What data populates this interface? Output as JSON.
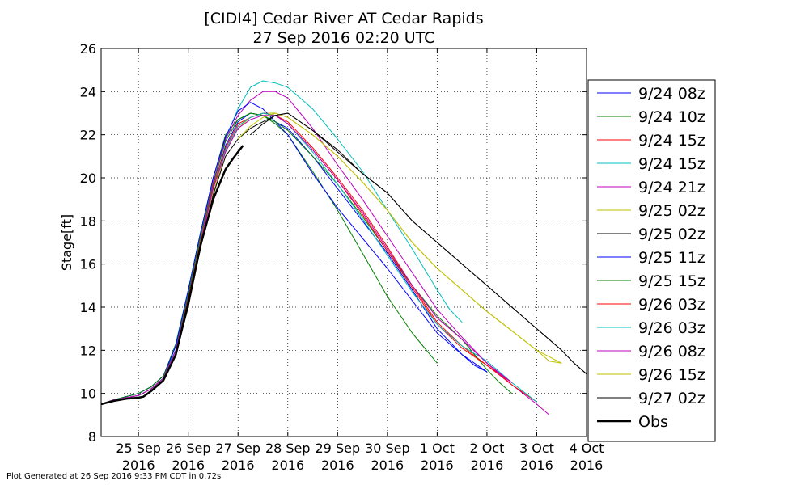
{
  "chart_data": {
    "type": "line",
    "title": "[CIDI4] Cedar River  AT Cedar Rapids",
    "subtitle": "27 Sep 2016 02:20 UTC",
    "ylabel": "Stage[ft]",
    "xlabel": "",
    "ylim": [
      8,
      26
    ],
    "xlim": [
      24.25,
      34.0
    ],
    "yticks": [
      8,
      10,
      12,
      14,
      16,
      18,
      20,
      22,
      24,
      26
    ],
    "xticks": [
      {
        "x": 25,
        "label": [
          "25 Sep",
          "2016"
        ]
      },
      {
        "x": 26,
        "label": [
          "26 Sep",
          "2016"
        ]
      },
      {
        "x": 27,
        "label": [
          "27 Sep",
          "2016"
        ]
      },
      {
        "x": 28,
        "label": [
          "28 Sep",
          "2016"
        ]
      },
      {
        "x": 29,
        "label": [
          "29 Sep",
          "2016"
        ]
      },
      {
        "x": 30,
        "label": [
          "30 Sep",
          "2016"
        ]
      },
      {
        "x": 31,
        "label": [
          "1 Oct",
          "2016"
        ]
      },
      {
        "x": 32,
        "label": [
          "2 Oct",
          "2016"
        ]
      },
      {
        "x": 33,
        "label": [
          "3 Oct",
          "2016"
        ]
      },
      {
        "x": 34,
        "label": [
          "4 Oct",
          "2016"
        ]
      }
    ],
    "x_unit": "day of Sep 2016 (UTC), 32 = 2 Oct",
    "grid": true,
    "legend_position": "right",
    "series": [
      {
        "name": "9/24 08z",
        "color": "#0000ff",
        "width": 1,
        "x": [
          24.25,
          24.5,
          25.0,
          25.25,
          25.5,
          25.75,
          26.0,
          26.25,
          26.5,
          26.75,
          27.0,
          27.25,
          27.5,
          27.75,
          28.0,
          28.5,
          29.0,
          29.5,
          30.0,
          30.5,
          31.0,
          31.5,
          31.75,
          32.0
        ],
        "y": [
          9.5,
          9.7,
          10.0,
          10.3,
          10.8,
          12.0,
          14.5,
          17.0,
          19.5,
          21.5,
          22.6,
          23.0,
          22.9,
          22.6,
          22.3,
          21.0,
          19.5,
          18.0,
          16.5,
          14.8,
          13.0,
          11.8,
          11.3,
          11.0
        ]
      },
      {
        "name": "9/24 10z",
        "color": "#008000",
        "width": 1,
        "x": [
          24.25,
          24.5,
          25.0,
          25.25,
          25.5,
          25.75,
          26.0,
          26.25,
          26.5,
          26.75,
          27.0,
          27.25,
          27.5,
          27.75,
          28.0,
          28.5,
          29.0,
          29.5,
          30.0,
          30.5,
          31.0
        ],
        "y": [
          9.5,
          9.7,
          10.0,
          10.3,
          10.8,
          12.3,
          14.8,
          17.5,
          20.0,
          22.0,
          22.7,
          23.0,
          22.9,
          22.5,
          22.0,
          20.3,
          18.5,
          16.5,
          14.5,
          12.8,
          11.4
        ]
      },
      {
        "name": "9/24 15z",
        "color": "#ff0000",
        "width": 1,
        "x": [
          24.25,
          24.5,
          25.0,
          25.25,
          25.5,
          25.75,
          26.0,
          26.25,
          26.5,
          26.75,
          27.0,
          27.25,
          27.5,
          27.75,
          28.0,
          28.5,
          29.0,
          29.5,
          30.0,
          30.5,
          31.0,
          31.5,
          32.0,
          32.5
        ],
        "y": [
          9.5,
          9.7,
          9.9,
          10.2,
          10.7,
          12.0,
          14.3,
          17.0,
          19.5,
          21.3,
          22.4,
          22.8,
          23.0,
          22.9,
          22.6,
          21.4,
          20.0,
          18.5,
          16.8,
          15.0,
          13.3,
          12.2,
          11.3,
          10.5
        ]
      },
      {
        "name": "9/24 15z",
        "color": "#00bfbf",
        "width": 1,
        "x": [
          24.25,
          24.5,
          25.0,
          25.25,
          25.5,
          25.75,
          26.0,
          26.25,
          26.5,
          26.75,
          27.0,
          27.25,
          27.5,
          27.75,
          28.0,
          28.5,
          29.0,
          29.5,
          30.0,
          30.5,
          31.0,
          31.25,
          31.5
        ],
        "y": [
          9.5,
          9.7,
          9.9,
          10.2,
          10.7,
          12.2,
          14.8,
          17.5,
          19.8,
          21.8,
          23.2,
          24.2,
          24.5,
          24.4,
          24.2,
          23.2,
          21.8,
          20.3,
          18.5,
          16.7,
          14.8,
          13.9,
          13.3
        ]
      },
      {
        "name": "9/24 21z",
        "color": "#bf00bf",
        "width": 1,
        "x": [
          24.25,
          24.5,
          25.0,
          25.25,
          25.5,
          25.75,
          26.0,
          26.25,
          26.5,
          26.75,
          27.0,
          27.25,
          27.5,
          27.75,
          28.0,
          28.25,
          28.5,
          29.0,
          29.5,
          30.0,
          30.5,
          31.0,
          31.5,
          32.0,
          32.5,
          33.0,
          33.25
        ],
        "y": [
          9.5,
          9.7,
          9.9,
          10.2,
          10.7,
          12.0,
          14.6,
          17.3,
          19.8,
          21.8,
          22.9,
          23.6,
          24.0,
          24.0,
          23.7,
          23.0,
          22.3,
          20.6,
          19.0,
          17.3,
          15.6,
          13.9,
          12.6,
          11.4,
          10.4,
          9.5,
          9.0
        ]
      },
      {
        "name": "9/25 02z",
        "color": "#bfbf00",
        "width": 1,
        "x": [
          24.25,
          24.5,
          25.0,
          25.25,
          25.5,
          25.75,
          26.0,
          26.25,
          26.5,
          26.75,
          27.0,
          27.25,
          27.5,
          27.75,
          28.0,
          28.5,
          29.0,
          29.5,
          30.0,
          30.5,
          31.0,
          31.5,
          32.0,
          32.5,
          33.0,
          33.5
        ],
        "y": [
          9.5,
          9.7,
          9.9,
          10.2,
          10.7,
          11.8,
          14.0,
          16.8,
          19.3,
          21.2,
          22.3,
          22.8,
          23.0,
          23.0,
          22.8,
          22.0,
          21.0,
          19.8,
          18.5,
          17.0,
          15.8,
          14.8,
          13.8,
          12.9,
          12.0,
          11.4
        ]
      },
      {
        "name": "9/25 02z",
        "color": "#000000",
        "width": 1,
        "x": [
          24.25,
          24.5,
          25.0,
          25.25,
          25.5,
          25.75,
          26.0,
          26.25,
          26.5,
          26.75,
          27.0,
          27.25,
          27.5,
          27.75,
          28.0,
          28.5,
          29.0,
          29.5,
          30.0,
          30.5,
          31.0,
          31.5,
          32.0,
          32.5,
          33.0,
          33.5,
          33.75,
          34.0
        ],
        "y": [
          9.5,
          9.7,
          9.9,
          10.2,
          10.7,
          11.8,
          14.0,
          16.8,
          19.2,
          21.0,
          21.8,
          22.3,
          22.6,
          22.9,
          23.0,
          22.2,
          21.3,
          20.2,
          19.3,
          18.0,
          17.0,
          16.0,
          15.0,
          14.0,
          13.0,
          12.0,
          11.4,
          10.9
        ]
      },
      {
        "name": "9/25 11z",
        "color": "#0000ff",
        "width": 1,
        "x": [
          24.25,
          24.5,
          25.0,
          25.25,
          25.5,
          25.75,
          26.0,
          26.25,
          26.5,
          26.75,
          27.0,
          27.25,
          27.5,
          27.75,
          28.0,
          28.5,
          29.0,
          29.5,
          30.0,
          30.5,
          31.0,
          31.5,
          32.0
        ],
        "y": [
          9.5,
          9.7,
          10.0,
          10.3,
          10.8,
          12.2,
          14.8,
          17.5,
          20.0,
          21.9,
          23.1,
          23.5,
          23.2,
          22.6,
          22.0,
          20.2,
          18.6,
          17.2,
          15.8,
          14.3,
          12.8,
          11.8,
          11.0
        ]
      },
      {
        "name": "9/25 15z",
        "color": "#008000",
        "width": 1,
        "x": [
          24.25,
          24.5,
          25.0,
          25.25,
          25.5,
          25.75,
          26.0,
          26.25,
          26.5,
          26.75,
          27.0,
          27.25,
          27.5,
          27.75,
          28.0,
          28.5,
          29.0,
          29.5,
          30.0,
          30.5,
          31.0,
          31.5,
          32.0,
          32.25,
          32.5
        ],
        "y": [
          9.5,
          9.7,
          10.0,
          10.3,
          10.8,
          12.0,
          14.6,
          17.3,
          19.7,
          21.7,
          22.7,
          23.0,
          22.9,
          22.6,
          22.2,
          21.0,
          19.7,
          18.2,
          16.6,
          15.0,
          13.6,
          12.5,
          11.1,
          10.5,
          10.0
        ]
      },
      {
        "name": "9/26 03z",
        "color": "#ff0000",
        "width": 1,
        "x": [
          24.25,
          24.5,
          25.0,
          25.25,
          25.5,
          25.75,
          26.0,
          26.25,
          26.5,
          26.75,
          27.0,
          27.25,
          27.5,
          27.75,
          28.0,
          28.5,
          29.0,
          29.5,
          30.0,
          30.5,
          31.0,
          31.5,
          32.0,
          32.5,
          33.0
        ],
        "y": [
          9.5,
          9.7,
          9.9,
          10.2,
          10.7,
          12.0,
          14.4,
          17.1,
          19.6,
          21.4,
          22.5,
          22.8,
          23.0,
          22.9,
          22.5,
          21.3,
          19.9,
          18.3,
          16.6,
          14.9,
          13.2,
          12.1,
          11.3,
          10.4,
          9.6
        ]
      },
      {
        "name": "9/26 03z",
        "color": "#00bfbf",
        "width": 1,
        "x": [
          24.25,
          24.5,
          25.0,
          25.25,
          25.5,
          25.75,
          26.0,
          26.25,
          26.5,
          26.75,
          27.0,
          27.25,
          27.5,
          27.75,
          28.0,
          28.5,
          29.0,
          29.5,
          30.0,
          30.5,
          31.0,
          31.5,
          32.0,
          32.5,
          33.0
        ],
        "y": [
          9.5,
          9.7,
          9.9,
          10.2,
          10.7,
          12.0,
          14.3,
          17.0,
          19.5,
          21.3,
          22.4,
          22.8,
          23.0,
          22.9,
          22.5,
          21.2,
          19.7,
          18.1,
          16.4,
          14.7,
          13.2,
          12.2,
          11.5,
          10.5,
          9.6
        ]
      },
      {
        "name": "9/26 08z",
        "color": "#bf00bf",
        "width": 1,
        "x": [
          24.25,
          24.5,
          25.0,
          25.25,
          25.5,
          25.75,
          26.0,
          26.25,
          26.5,
          26.75,
          27.0,
          27.25,
          27.5,
          27.75,
          28.0,
          28.5,
          29.0,
          29.5,
          30.0,
          30.5,
          31.0,
          31.5,
          32.0,
          32.5
        ],
        "y": [
          9.5,
          9.7,
          9.9,
          10.2,
          10.7,
          12.0,
          14.3,
          17.0,
          19.5,
          21.2,
          22.3,
          22.7,
          22.9,
          22.9,
          22.5,
          21.3,
          19.9,
          18.4,
          16.7,
          15.0,
          13.5,
          12.5,
          11.4,
          10.5
        ]
      },
      {
        "name": "9/26 15z",
        "color": "#bfbf00",
        "width": 1,
        "x": [
          27.0,
          27.25,
          27.5,
          27.75,
          28.0,
          28.5,
          29.0,
          29.5,
          30.0,
          30.5,
          31.0,
          31.5,
          32.0,
          32.5,
          33.0,
          33.25,
          33.5
        ],
        "y": [
          21.8,
          22.4,
          22.8,
          23.0,
          22.8,
          22.0,
          21.0,
          19.8,
          18.5,
          17.0,
          15.8,
          14.8,
          13.8,
          12.9,
          12.0,
          11.5,
          11.4
        ]
      },
      {
        "name": "9/27 02z",
        "color": "#000000",
        "width": 1,
        "x": [
          27.25,
          27.5,
          27.75,
          28.0,
          28.5,
          29.0,
          29.5,
          30.0,
          30.5,
          31.0,
          31.5,
          32.0,
          32.5,
          33.0,
          33.5,
          33.75,
          34.0
        ],
        "y": [
          22.0,
          22.5,
          22.9,
          23.0,
          22.2,
          21.2,
          20.2,
          19.3,
          18.0,
          17.0,
          16.0,
          15.0,
          14.0,
          13.0,
          12.0,
          11.4,
          10.9
        ]
      },
      {
        "name": "Obs",
        "color": "#000000",
        "width": 2.5,
        "x": [
          24.25,
          24.5,
          24.75,
          25.0,
          25.1,
          25.25,
          25.5,
          25.75,
          26.0,
          26.25,
          26.5,
          26.75,
          26.9,
          27.0,
          27.1
        ],
        "y": [
          9.5,
          9.65,
          9.75,
          9.8,
          9.85,
          10.1,
          10.6,
          11.8,
          14.2,
          16.9,
          19.0,
          20.4,
          20.9,
          21.2,
          21.5
        ]
      }
    ]
  },
  "footer": "Plot Generated at 26 Sep 2016 9:33 PM CDT in 0.72s"
}
